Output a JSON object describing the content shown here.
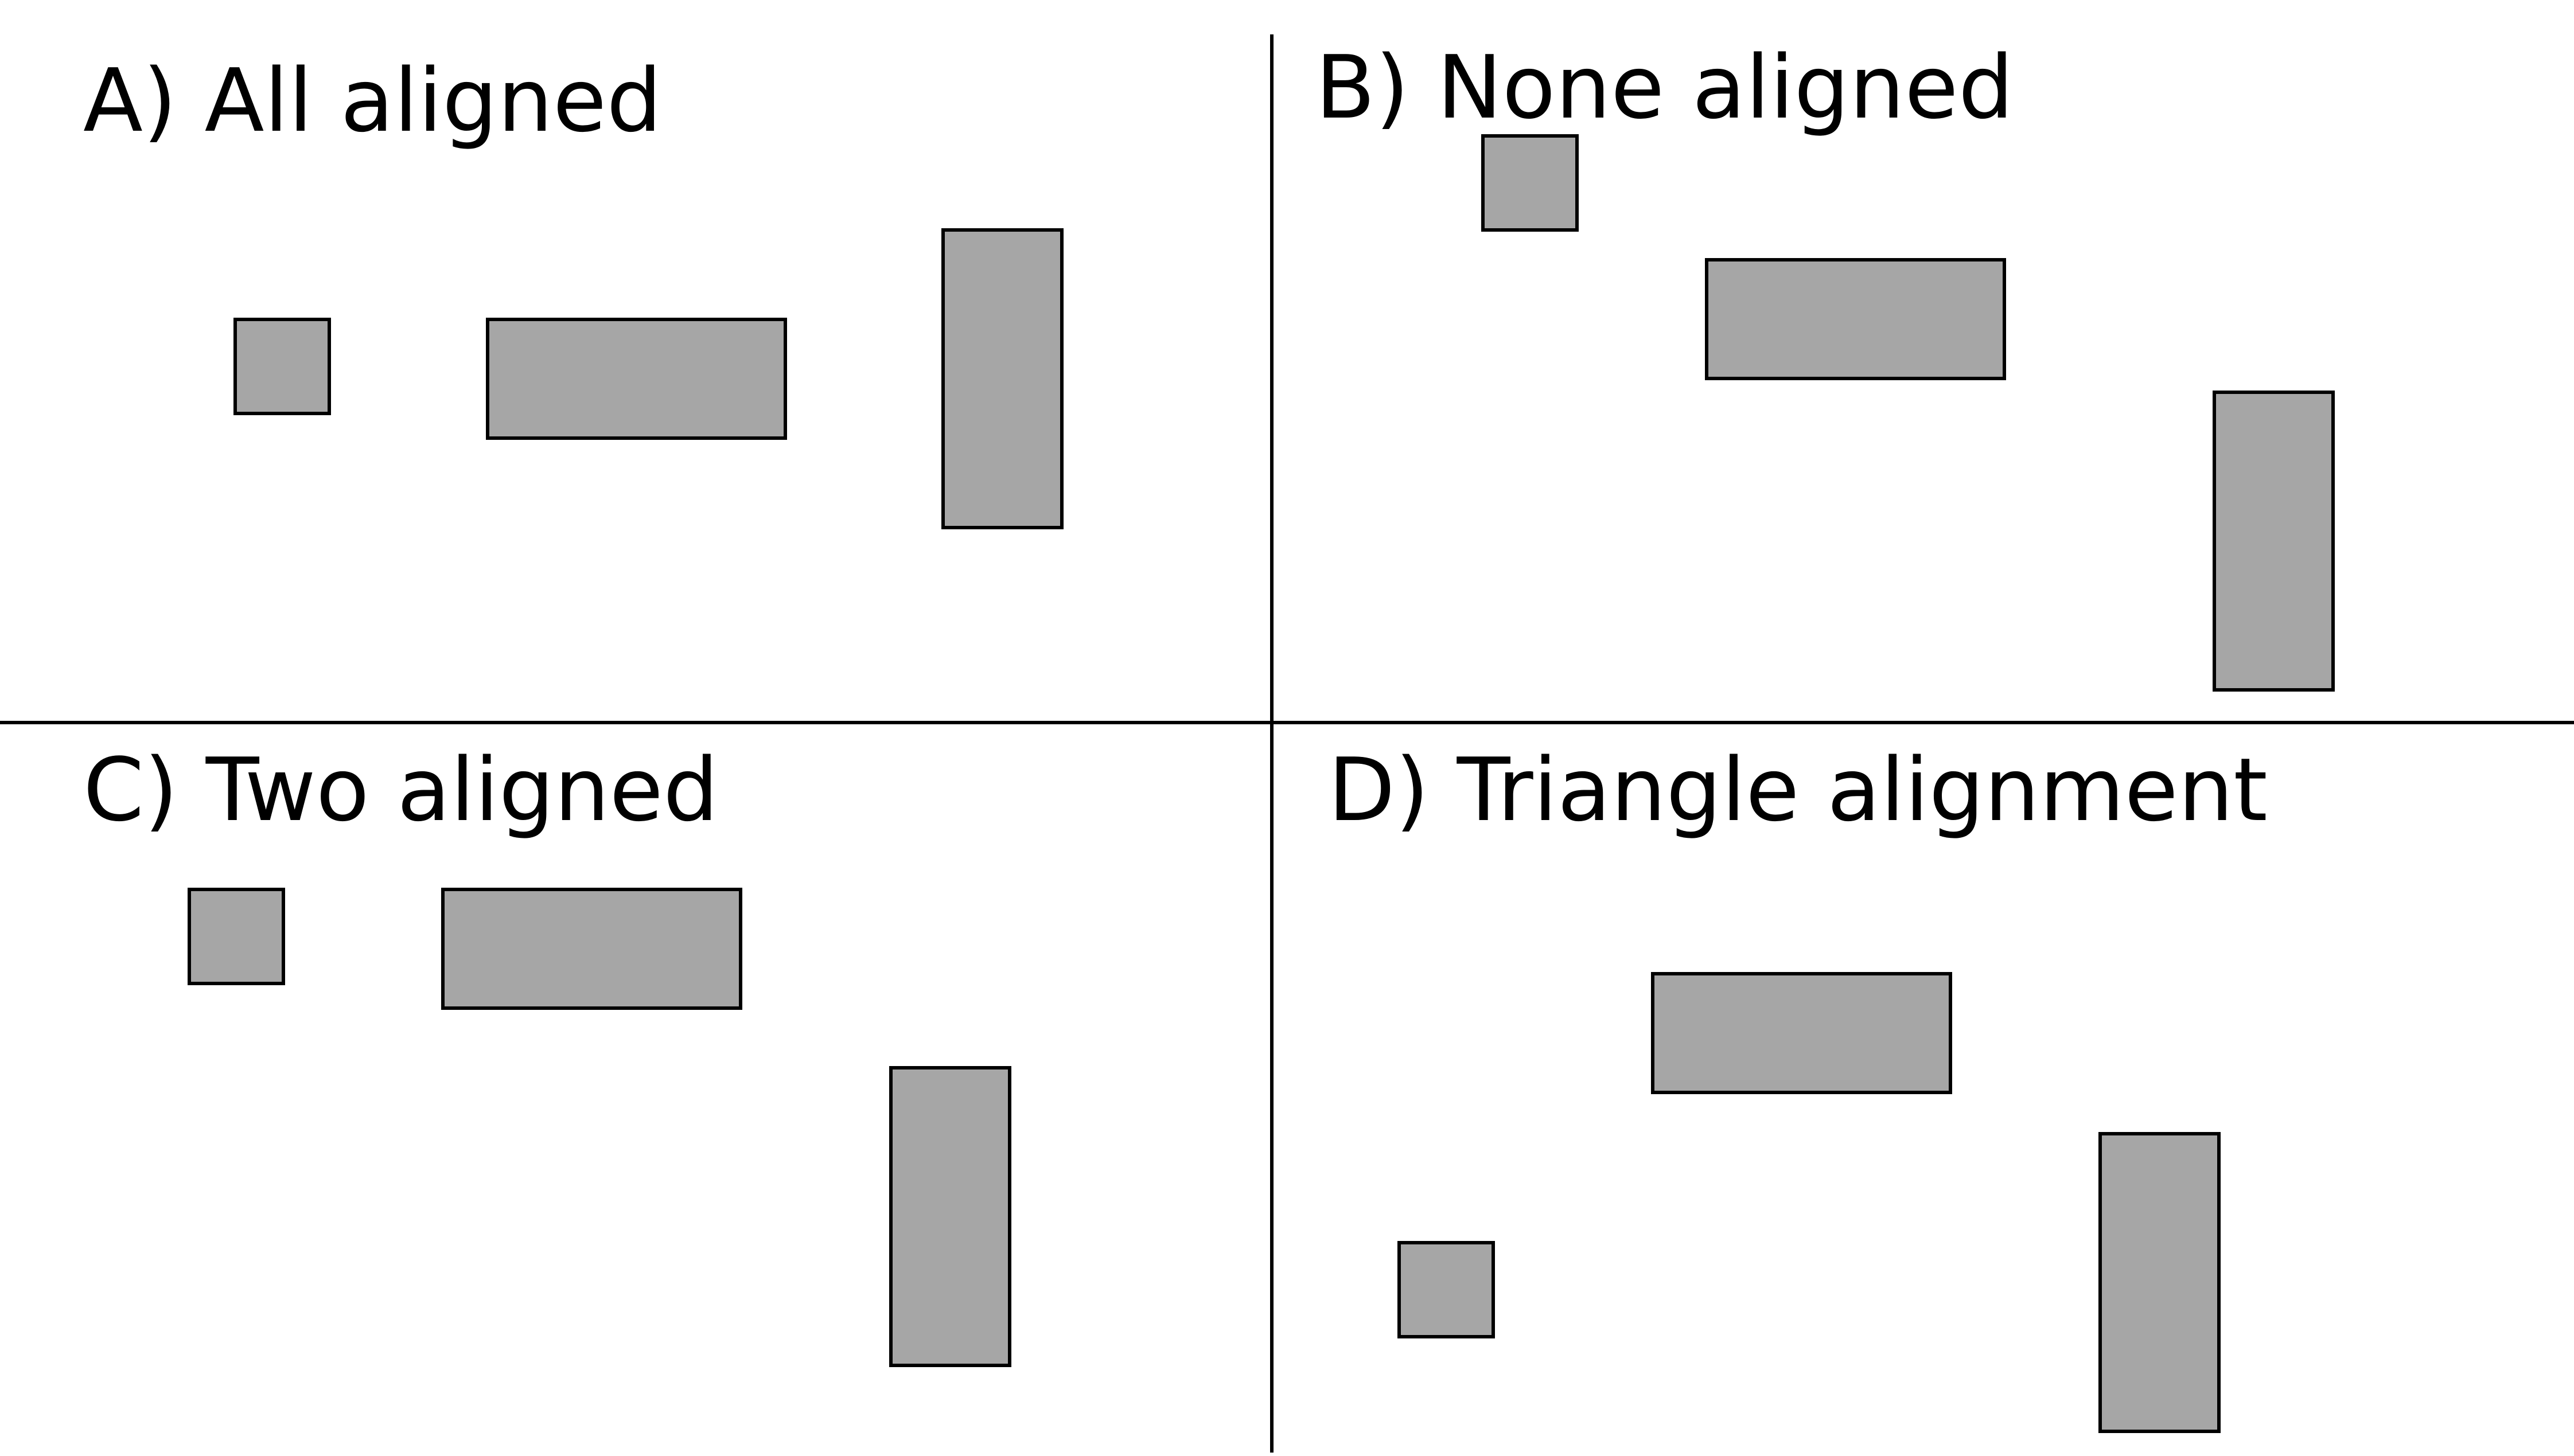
{
  "colors": {
    "background": "#ffffff",
    "shape_fill": "#a6a6a6",
    "shape_stroke": "#000000",
    "divider": "#000000",
    "text": "#000000"
  },
  "panels": [
    {
      "id": "a",
      "title": "A) All aligned"
    },
    {
      "id": "b",
      "title": "B) None aligned"
    },
    {
      "id": "c",
      "title": "C) Two aligned"
    },
    {
      "id": "d",
      "title": "D) Triangle alignment"
    }
  ]
}
